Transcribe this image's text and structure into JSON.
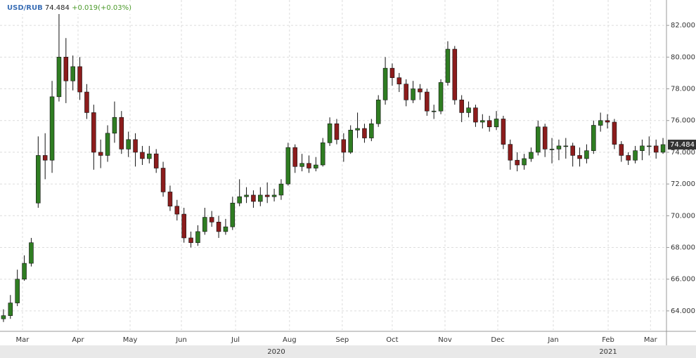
{
  "chart_data": {
    "type": "candlestick",
    "title": "USD/RUB",
    "last": 74.484,
    "change_label": "+0.019(+0.03%)",
    "up_color": "#2f7d22",
    "down_color": "#8c1c1c",
    "grid": true,
    "open": [
      63.5,
      63.7,
      64.5,
      66,
      67,
      70.8,
      73.8,
      73.5,
      77.5,
      80,
      78.5,
      79.4,
      77.8,
      76.5,
      74,
      73.8,
      75.2,
      76.2,
      74.2,
      74.8,
      74,
      73.6,
      73.9,
      73,
      71.5,
      70.6,
      70.1,
      68.6,
      68.3,
      69,
      69.9,
      69.6,
      69,
      69.3,
      70.8,
      71.2,
      71.3,
      70.9,
      71.3,
      71.2,
      71.3,
      72,
      74.3,
      73.1,
      73.3,
      73,
      73.2,
      74.6,
      75.8,
      74.8,
      74,
      75.4,
      75.5,
      74.9,
      75.8,
      77.3,
      79.3,
      78.7,
      78.3,
      77.3,
      78,
      77.8,
      76.6,
      76.6,
      78.4,
      80.5,
      77.3,
      76.5,
      76.8,
      75.9,
      76,
      75.6,
      76.1,
      74.5,
      73.5,
      73.2,
      73.6,
      74,
      75.6,
      74.2,
      74.2,
      74.4,
      74.4,
      73.8,
      73.6,
      74.1,
      75.7,
      76,
      75.9,
      74.5,
      73.8,
      73.5,
      74.1,
      74.4,
      74.4,
      74
    ],
    "high": [
      64.1,
      65.0,
      66.6,
      67.5,
      68.6,
      75.0,
      75.2,
      78.5,
      82.8,
      81.2,
      80.1,
      80.0,
      78.3,
      77.0,
      74.8,
      75.7,
      77.2,
      76.6,
      75.3,
      75.2,
      74.4,
      74.4,
      74.2,
      73.4,
      71.9,
      71.0,
      70.5,
      69.0,
      69.4,
      70.5,
      70.3,
      70.0,
      69.8,
      71.2,
      72.3,
      71.8,
      71.6,
      71.8,
      72.1,
      71.7,
      72.3,
      74.6,
      74.5,
      73.9,
      73.8,
      73.7,
      74.9,
      76.2,
      76.1,
      75.2,
      75.7,
      76.5,
      75.8,
      76.1,
      77.6,
      80,
      79.6,
      79.0,
      78.6,
      78.5,
      78.3,
      78.0,
      77.0,
      78.6,
      81.0,
      80.7,
      77.6,
      77.2,
      77.0,
      76.4,
      76.3,
      76.6,
      76.3,
      74.8,
      74.0,
      73.9,
      74.3,
      76.0,
      75.8,
      74.9,
      74.8,
      74.9,
      74.6,
      74.3,
      74.5,
      76.0,
      76.5,
      76.4,
      76.1,
      74.7,
      74.0,
      74.4,
      74.8,
      75.0,
      74.8,
      74.9
    ],
    "low": [
      63.3,
      63.5,
      64.3,
      65.9,
      66.8,
      70.5,
      72.3,
      72.7,
      77.2,
      77.1,
      77.9,
      77.3,
      76.1,
      72.9,
      73.0,
      73.4,
      74.6,
      73.9,
      73.7,
      73.1,
      73.2,
      73.3,
      72.7,
      71.2,
      70.3,
      69.7,
      68.3,
      68.0,
      68.1,
      68.8,
      69.3,
      68.6,
      68.8,
      69.1,
      70.6,
      70.8,
      70.5,
      70.6,
      70.8,
      70.9,
      71.0,
      71.9,
      72.7,
      72.8,
      72.7,
      72.8,
      73.1,
      74.4,
      74.5,
      73.4,
      73.9,
      74.9,
      74.6,
      74.7,
      75.6,
      77.0,
      78.2,
      77.8,
      76.9,
      77.1,
      77.3,
      76.3,
      76.1,
      76.4,
      78.2,
      77.0,
      75.9,
      76.2,
      75.6,
      75.5,
      75.3,
      75.4,
      74.2,
      72.9,
      72.8,
      72.9,
      73.4,
      73.8,
      73.7,
      73.3,
      73.5,
      73.6,
      73.1,
      73.1,
      73.3,
      73.9,
      75.3,
      75.5,
      74.2,
      73.4,
      73.2,
      73.3,
      73.5,
      73.8,
      73.6,
      73.9
    ],
    "close": [
      63.7,
      64.5,
      66,
      67,
      68.3,
      73.8,
      73.5,
      77.5,
      80,
      78.5,
      79.4,
      77.8,
      76.5,
      74,
      73.8,
      75.2,
      76.2,
      74.2,
      74.8,
      74,
      73.6,
      73.9,
      73,
      71.5,
      70.6,
      70.1,
      68.6,
      68.3,
      69,
      69.9,
      69.6,
      69,
      69.3,
      70.8,
      71.2,
      71.3,
      70.9,
      71.3,
      71.2,
      71.3,
      72,
      74.3,
      73.1,
      73.3,
      73,
      73.2,
      74.6,
      75.8,
      74.8,
      74,
      75.4,
      75.5,
      74.9,
      75.8,
      77.3,
      79.3,
      78.7,
      78.3,
      77.3,
      78,
      77.8,
      76.6,
      76.6,
      78.4,
      80.5,
      77.3,
      76.5,
      76.8,
      75.9,
      76,
      75.6,
      76.1,
      74.5,
      73.5,
      73.2,
      73.6,
      74,
      75.6,
      74.2,
      74.2,
      74.4,
      74.4,
      73.8,
      73.6,
      74.1,
      75.7,
      76,
      75.9,
      74.5,
      73.8,
      73.5,
      74.1,
      74.4,
      74.4,
      74,
      74.484
    ],
    "xlim": [
      -0.5,
      95.5
    ],
    "xticks": [
      {
        "value": 2.74,
        "label": "Mar"
      },
      {
        "value": 10.74,
        "label": "Apr"
      },
      {
        "value": 18.24,
        "label": "May"
      },
      {
        "value": 25.63,
        "label": "Jun"
      },
      {
        "value": 33.43,
        "label": "Jul"
      },
      {
        "value": 41.2,
        "label": "Aug"
      },
      {
        "value": 48.8,
        "label": "Sep"
      },
      {
        "value": 56.0,
        "label": "Oct"
      },
      {
        "value": 63.6,
        "label": "Nov"
      },
      {
        "value": 71.2,
        "label": "Dec"
      },
      {
        "value": 79.2,
        "label": "Jan"
      },
      {
        "value": 87.1,
        "label": "Feb"
      },
      {
        "value": 93.2,
        "label": "Mar"
      }
    ],
    "years": [
      {
        "value": 39.3,
        "label": "2020"
      },
      {
        "value": 87.1,
        "label": "2021"
      }
    ],
    "ylim": [
      62.8,
      83.6
    ],
    "yticks": [
      {
        "value": 64,
        "label": "64.000"
      },
      {
        "value": 66,
        "label": "66.000"
      },
      {
        "value": 68,
        "label": "68.000"
      },
      {
        "value": 70,
        "label": "70.000"
      },
      {
        "value": 72,
        "label": "72.000"
      },
      {
        "value": 74,
        "label": "74.000"
      },
      {
        "value": 76,
        "label": "76.000"
      },
      {
        "value": 78,
        "label": "78.000"
      },
      {
        "value": 80,
        "label": "80.000"
      },
      {
        "value": 82,
        "label": "82.000"
      }
    ]
  }
}
